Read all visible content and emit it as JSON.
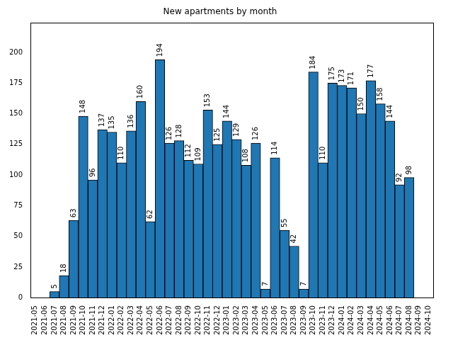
{
  "chart_data": {
    "type": "bar",
    "title": "New apartments by month",
    "categories": [
      "2021-05",
      "2021-06",
      "2021-07",
      "2021-08",
      "2021-09",
      "2021-10",
      "2021-11",
      "2021-12",
      "2022-01",
      "2022-02",
      "2022-03",
      "2022-04",
      "2022-05",
      "2022-06",
      "2022-07",
      "2022-08",
      "2022-09",
      "2022-10",
      "2022-11",
      "2022-12",
      "2023-01",
      "2023-02",
      "2023-03",
      "2023-04",
      "2023-05",
      "2023-06",
      "2023-07",
      "2023-08",
      "2023-09",
      "2023-10",
      "2023-11",
      "2023-12",
      "2024-01",
      "2024-02",
      "2024-03",
      "2024-04",
      "2024-05",
      "2024-06",
      "2024-07",
      "2024-08",
      "2024-09",
      "2024-10"
    ],
    "values": [
      null,
      null,
      5,
      18,
      63,
      148,
      96,
      137,
      135,
      110,
      136,
      160,
      62,
      194,
      126,
      128,
      112,
      109,
      153,
      125,
      144,
      129,
      108,
      126,
      7,
      114,
      55,
      42,
      7,
      184,
      110,
      175,
      173,
      171,
      150,
      177,
      158,
      144,
      92,
      98,
      null,
      null
    ],
    "color": "#1f77b4",
    "ylim": [
      0,
      224
    ],
    "yticks": [
      0,
      25,
      50,
      75,
      100,
      125,
      150,
      175,
      200
    ],
    "grid": false,
    "data_labels": true
  }
}
